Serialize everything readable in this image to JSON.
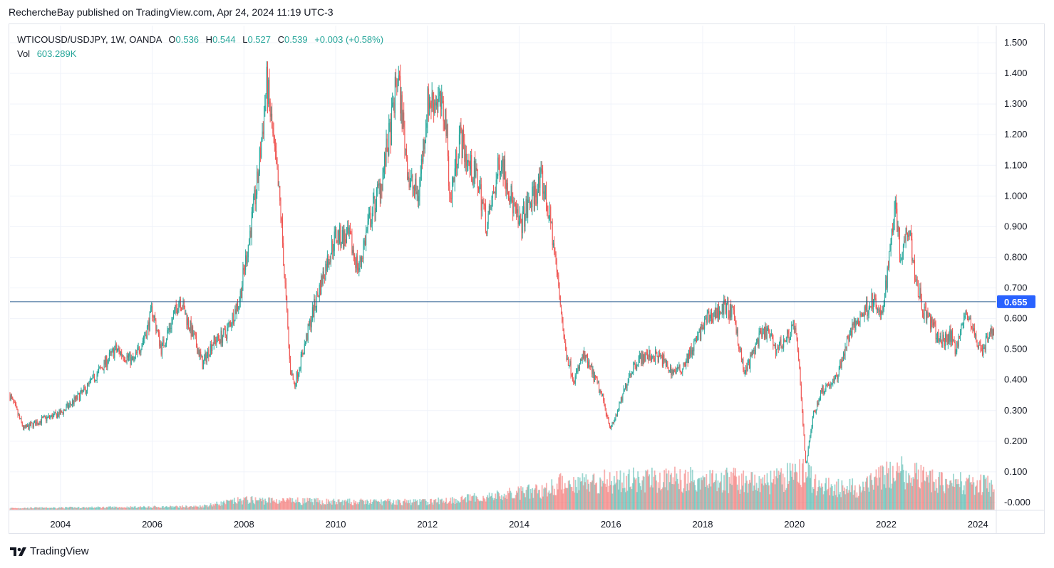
{
  "header": {
    "published": "RechercheBay published on TradingView.com, Apr 24, 2024 11:19 UTC-3"
  },
  "legend": {
    "symbol": "WTICOUSD/USDJPY, 1W, OANDA",
    "open_label": "O",
    "open": "0.536",
    "high_label": "H",
    "high": "0.544",
    "low_label": "L",
    "low": "0.527",
    "close_label": "C",
    "close": "0.539",
    "change": "+0.003 (+0.58%)",
    "vol_label": "Vol",
    "vol": "603.289K"
  },
  "footer": {
    "brand": "TradingView",
    "logo_icon": "tradingview-logo-icon"
  },
  "colors": {
    "up": "#26a69a",
    "down": "#ef5350",
    "hline": "#2a5d8f",
    "price_label_bg": "#2962ff"
  },
  "chart_data": {
    "type": "candlestick",
    "x_tick_labels": [
      "2004",
      "2006",
      "2008",
      "2010",
      "2012",
      "2014",
      "2016",
      "2018",
      "2020",
      "2022",
      "2024"
    ],
    "y_tick_labels": [
      "1.500",
      "1.400",
      "1.300",
      "1.200",
      "1.100",
      "1.000",
      "0.900",
      "0.800",
      "0.700",
      "0.600",
      "0.500",
      "0.400",
      "0.300",
      "0.200",
      "0.100",
      "-0.000"
    ],
    "ylim": [
      0,
      1.5
    ],
    "xlim": [
      2002.9,
      2024.4
    ],
    "horizontal_line": {
      "value": 0.655,
      "label": "0.655"
    },
    "price_path": [
      [
        2002.9,
        0.35
      ],
      [
        2003.2,
        0.24
      ],
      [
        2003.6,
        0.27
      ],
      [
        2004.0,
        0.29
      ],
      [
        2004.5,
        0.36
      ],
      [
        2004.8,
        0.42
      ],
      [
        2005.2,
        0.5
      ],
      [
        2005.6,
        0.46
      ],
      [
        2005.9,
        0.57
      ],
      [
        2006.0,
        0.63
      ],
      [
        2006.2,
        0.5
      ],
      [
        2006.5,
        0.62
      ],
      [
        2006.6,
        0.67
      ],
      [
        2006.8,
        0.58
      ],
      [
        2007.0,
        0.5
      ],
      [
        2007.1,
        0.45
      ],
      [
        2007.3,
        0.52
      ],
      [
        2007.6,
        0.55
      ],
      [
        2007.9,
        0.66
      ],
      [
        2008.1,
        0.85
      ],
      [
        2008.3,
        1.05
      ],
      [
        2008.5,
        1.37
      ],
      [
        2008.8,
        0.95
      ],
      [
        2009.0,
        0.45
      ],
      [
        2009.1,
        0.38
      ],
      [
        2009.3,
        0.5
      ],
      [
        2009.5,
        0.62
      ],
      [
        2009.8,
        0.78
      ],
      [
        2010.0,
        0.87
      ],
      [
        2010.3,
        0.86
      ],
      [
        2010.5,
        0.76
      ],
      [
        2010.7,
        0.9
      ],
      [
        2011.0,
        1.05
      ],
      [
        2011.2,
        1.22
      ],
      [
        2011.35,
        1.4
      ],
      [
        2011.6,
        1.05
      ],
      [
        2011.8,
        1.0
      ],
      [
        2012.0,
        1.3
      ],
      [
        2012.2,
        1.32
      ],
      [
        2012.4,
        1.25
      ],
      [
        2012.5,
        0.98
      ],
      [
        2012.7,
        1.2
      ],
      [
        2012.9,
        1.1
      ],
      [
        2013.1,
        1.05
      ],
      [
        2013.3,
        0.9
      ],
      [
        2013.5,
        1.05
      ],
      [
        2013.6,
        1.13
      ],
      [
        2013.9,
        0.95
      ],
      [
        2014.0,
        0.9
      ],
      [
        2014.3,
        1.0
      ],
      [
        2014.5,
        1.05
      ],
      [
        2014.7,
        0.9
      ],
      [
        2014.9,
        0.65
      ],
      [
        2015.0,
        0.5
      ],
      [
        2015.2,
        0.4
      ],
      [
        2015.4,
        0.48
      ],
      [
        2015.6,
        0.42
      ],
      [
        2015.8,
        0.35
      ],
      [
        2016.0,
        0.24
      ],
      [
        2016.2,
        0.32
      ],
      [
        2016.4,
        0.42
      ],
      [
        2016.6,
        0.47
      ],
      [
        2016.9,
        0.48
      ],
      [
        2017.1,
        0.47
      ],
      [
        2017.3,
        0.43
      ],
      [
        2017.5,
        0.43
      ],
      [
        2017.7,
        0.48
      ],
      [
        2017.9,
        0.54
      ],
      [
        2018.1,
        0.6
      ],
      [
        2018.3,
        0.62
      ],
      [
        2018.5,
        0.64
      ],
      [
        2018.7,
        0.6
      ],
      [
        2018.9,
        0.42
      ],
      [
        2019.0,
        0.45
      ],
      [
        2019.2,
        0.53
      ],
      [
        2019.4,
        0.56
      ],
      [
        2019.6,
        0.5
      ],
      [
        2019.8,
        0.53
      ],
      [
        2020.0,
        0.58
      ],
      [
        2020.1,
        0.45
      ],
      [
        2020.25,
        0.12
      ],
      [
        2020.4,
        0.28
      ],
      [
        2020.6,
        0.37
      ],
      [
        2020.9,
        0.4
      ],
      [
        2021.0,
        0.45
      ],
      [
        2021.2,
        0.55
      ],
      [
        2021.5,
        0.62
      ],
      [
        2021.7,
        0.66
      ],
      [
        2021.9,
        0.6
      ],
      [
        2022.0,
        0.72
      ],
      [
        2022.1,
        0.85
      ],
      [
        2022.2,
        1.0
      ],
      [
        2022.3,
        0.8
      ],
      [
        2022.5,
        0.92
      ],
      [
        2022.6,
        0.77
      ],
      [
        2022.8,
        0.63
      ],
      [
        2023.0,
        0.58
      ],
      [
        2023.2,
        0.52
      ],
      [
        2023.4,
        0.55
      ],
      [
        2023.5,
        0.5
      ],
      [
        2023.7,
        0.6
      ],
      [
        2023.8,
        0.61
      ],
      [
        2023.95,
        0.53
      ],
      [
        2024.1,
        0.5
      ],
      [
        2024.3,
        0.56
      ],
      [
        2024.35,
        0.539
      ]
    ],
    "volume_path": [
      [
        2002.9,
        0.004
      ],
      [
        2007.0,
        0.008
      ],
      [
        2008.0,
        0.025
      ],
      [
        2010.0,
        0.02
      ],
      [
        2012.0,
        0.02
      ],
      [
        2013.5,
        0.035
      ],
      [
        2014.5,
        0.05
      ],
      [
        2015.0,
        0.07
      ],
      [
        2016.0,
        0.075
      ],
      [
        2018.0,
        0.08
      ],
      [
        2019.5,
        0.07
      ],
      [
        2020.2,
        0.1
      ],
      [
        2020.5,
        0.06
      ],
      [
        2021.5,
        0.055
      ],
      [
        2022.2,
        0.1
      ],
      [
        2023.0,
        0.075
      ],
      [
        2024.35,
        0.06
      ]
    ],
    "volume_axis_max": 0.18
  }
}
